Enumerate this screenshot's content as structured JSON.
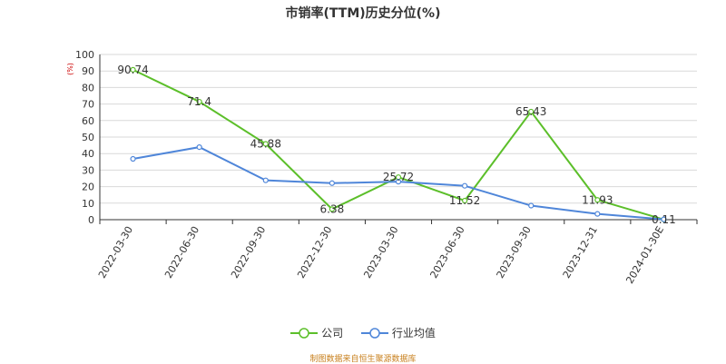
{
  "chart_data": {
    "type": "line",
    "title": "市销率(TTM)历史分位(%)",
    "y_unit": "(%)",
    "categories": [
      "2022-03-30",
      "2022-06-30",
      "2022-09-30",
      "2022-12-30",
      "2023-03-30",
      "2023-06-30",
      "2023-09-30",
      "2023-12-31",
      "2024-01-30E"
    ],
    "series": [
      {
        "name": "公司",
        "color": "#5cbf2a",
        "values": [
          90.74,
          71.4,
          45.88,
          6.38,
          25.72,
          11.52,
          65.43,
          11.93,
          0.11
        ],
        "labels": [
          "90.74",
          "71.4",
          "45.88",
          "6.38",
          "25.72",
          "11.52",
          "65.43",
          "11.93",
          "0.11"
        ]
      },
      {
        "name": "行业均值",
        "color": "#4f86d9",
        "values": [
          36.8,
          43.9,
          23.8,
          22.1,
          23.0,
          20.5,
          8.5,
          3.5,
          0.2
        ]
      }
    ],
    "ylim": [
      0,
      100
    ],
    "yticks": [
      0,
      10,
      20,
      30,
      40,
      50,
      60,
      70,
      80,
      90,
      100
    ],
    "grid": true,
    "legend_position": "bottom"
  },
  "source": "制图数据来自恒生聚源数据库"
}
